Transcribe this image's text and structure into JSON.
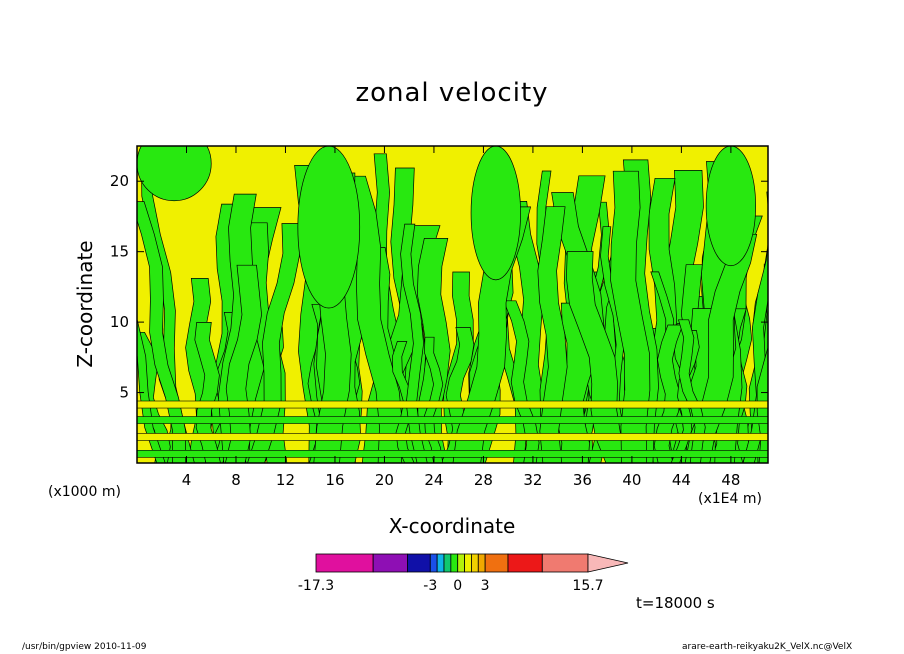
{
  "chart_data": {
    "type": "heatmap",
    "title": "zonal velocity",
    "xlabel": "X-coordinate",
    "ylabel": "Z-coordinate",
    "x_unit_label": "(x1E4 m)",
    "y_unit_label": "(x1000 m)",
    "xlim": [
      0,
      51
    ],
    "ylim": [
      0,
      22.5
    ],
    "x_ticks": [
      4,
      8,
      12,
      16,
      20,
      24,
      28,
      32,
      36,
      40,
      44,
      48
    ],
    "y_ticks": [
      5,
      10,
      15,
      20
    ],
    "field_pattern": "alternating thin bands of weak positive and negative velocity; yellow dominant in wide plumes centered near x=24, x=34 and x=42, green streaks fanning upward from the surface",
    "colorbar": {
      "colors": [
        "#e0109e",
        "#8e0fb4",
        "#1010a8",
        "#1a50e8",
        "#10b4e8",
        "#10c870",
        "#28e810",
        "#b4f00a",
        "#f0f000",
        "#f0d000",
        "#f0a800",
        "#f07010",
        "#ec1818",
        "#f07a70",
        "#f8b8b8"
      ],
      "tick_labels": [
        "-17.3",
        "-3",
        "0",
        "3",
        "15.7"
      ],
      "range": [
        -17.3,
        15.7
      ],
      "extend": "max"
    },
    "time_label": "t=18000 s"
  },
  "footer": {
    "left": "/usr/bin/gpview  2010-11-09",
    "right": "arare-earth-reikyaku2K_VelX.nc@VelX"
  },
  "colors": {
    "positive_fill": "#f0f000",
    "negative_fill": "#28e810",
    "contour": "#000000"
  }
}
